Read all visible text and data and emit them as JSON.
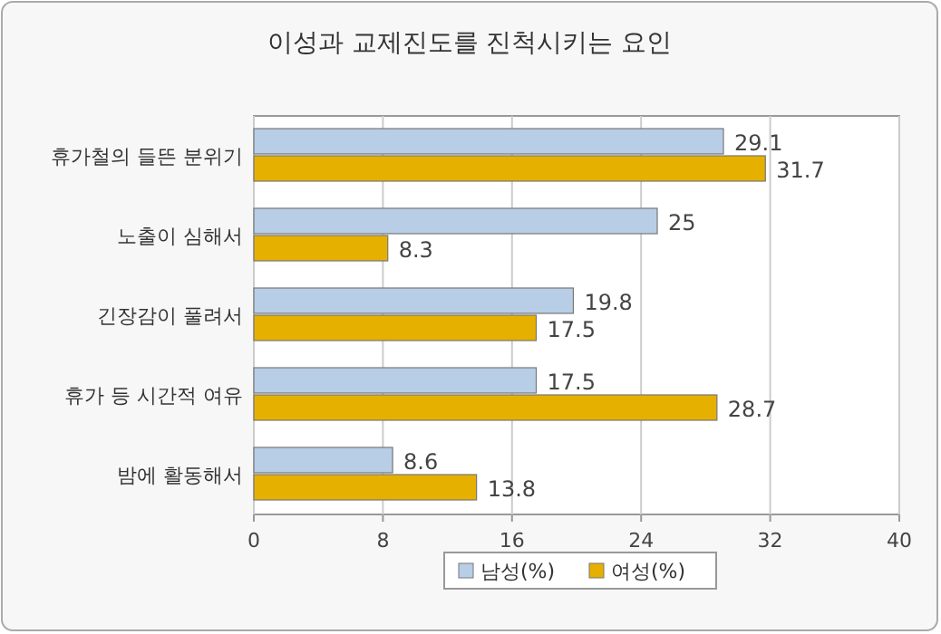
{
  "chart_data": {
    "type": "bar",
    "orientation": "horizontal",
    "title": "이성과 교제진도를 진척시키는 요인",
    "categories": [
      "휴가철의 들뜬 분위기",
      "노출이 심해서",
      "긴장감이 풀려서",
      "휴가 등 시간적 여유",
      "밤에 활동해서"
    ],
    "series": [
      {
        "name": "남성(%)",
        "color": "#b8cde6",
        "values": [
          29.1,
          25,
          19.8,
          17.5,
          8.6
        ]
      },
      {
        "name": "여성(%)",
        "color": "#e6b000",
        "values": [
          31.7,
          8.3,
          17.5,
          28.7,
          13.8
        ]
      }
    ],
    "xlim": [
      0,
      40
    ],
    "xticks": [
      0,
      8,
      16,
      24,
      32,
      40
    ],
    "grid": "x",
    "legend": "bottom",
    "data_labels": true
  }
}
